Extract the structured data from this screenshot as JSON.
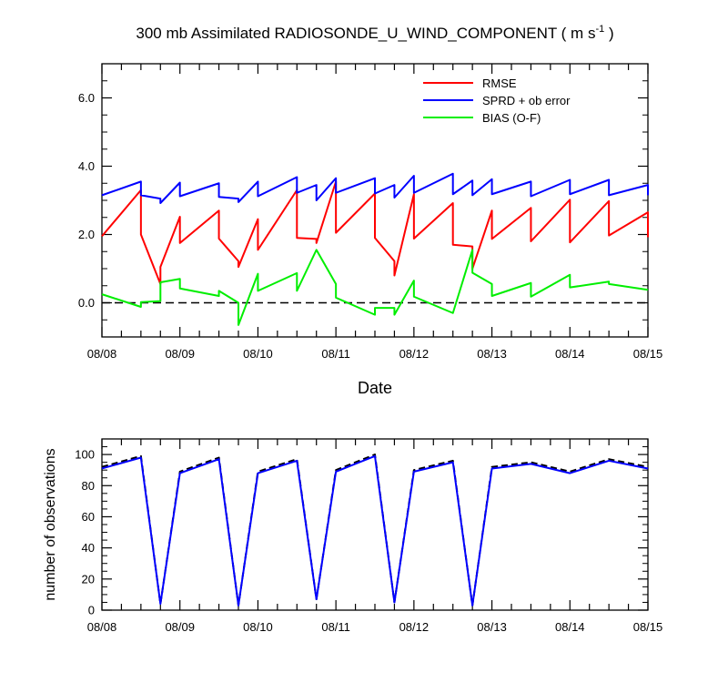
{
  "title": {
    "main": "300 mb Assimilated RADIOSONDE_U_WIND_COMPONENT ( m s",
    "unit_exponent": "-1",
    "close": " )"
  },
  "chart_data": [
    {
      "type": "line",
      "xlabel": "Date",
      "x_tick_labels": [
        "08/08",
        "08/09",
        "08/10",
        "08/11",
        "08/12",
        "08/13",
        "08/14",
        "08/15"
      ],
      "xlim": [
        0,
        7
      ],
      "ylim": [
        -1.0,
        7.0
      ],
      "y_ticks": [
        0.0,
        2.0,
        4.0,
        6.0
      ],
      "y_tick_labels": [
        "0.0",
        "2.0",
        "4.0",
        "6.0"
      ],
      "reference_line": {
        "y": 0.0,
        "style": "dashed"
      },
      "legend_position": "top-right",
      "series": [
        {
          "name": "RMSE",
          "color": "#ff0000",
          "points": [
            [
              0.0,
              1.95
            ],
            [
              0.5,
              3.3
            ],
            [
              0.5,
              2.0
            ],
            [
              0.75,
              0.55
            ],
            [
              0.75,
              1.05
            ],
            [
              1.0,
              2.52
            ],
            [
              1.0,
              1.75
            ],
            [
              1.5,
              2.7
            ],
            [
              1.5,
              1.88
            ],
            [
              1.75,
              1.22
            ],
            [
              1.75,
              1.05
            ],
            [
              2.0,
              2.45
            ],
            [
              2.0,
              1.55
            ],
            [
              2.5,
              3.3
            ],
            [
              2.5,
              1.9
            ],
            [
              2.75,
              1.87
            ],
            [
              2.75,
              1.75
            ],
            [
              3.0,
              3.55
            ],
            [
              3.0,
              2.05
            ],
            [
              3.5,
              3.2
            ],
            [
              3.5,
              1.9
            ],
            [
              3.75,
              1.22
            ],
            [
              3.75,
              0.8
            ],
            [
              4.0,
              3.18
            ],
            [
              4.0,
              1.88
            ],
            [
              4.5,
              2.92
            ],
            [
              4.5,
              1.7
            ],
            [
              4.75,
              1.65
            ],
            [
              4.75,
              1.0
            ],
            [
              5.0,
              2.7
            ],
            [
              5.0,
              1.87
            ],
            [
              5.5,
              2.78
            ],
            [
              5.5,
              1.8
            ],
            [
              6.0,
              3.02
            ],
            [
              6.0,
              1.77
            ],
            [
              6.5,
              2.98
            ],
            [
              6.5,
              1.97
            ],
            [
              7.0,
              2.65
            ],
            [
              7.0,
              1.92
            ]
          ]
        },
        {
          "name": "SPRD + ob error",
          "color": "#0000ff",
          "points": [
            [
              0.0,
              3.15
            ],
            [
              0.5,
              3.55
            ],
            [
              0.5,
              3.15
            ],
            [
              0.75,
              3.05
            ],
            [
              0.75,
              2.92
            ],
            [
              1.0,
              3.52
            ],
            [
              1.0,
              3.12
            ],
            [
              1.5,
              3.5
            ],
            [
              1.5,
              3.1
            ],
            [
              1.75,
              3.05
            ],
            [
              1.75,
              2.95
            ],
            [
              2.0,
              3.55
            ],
            [
              2.0,
              3.12
            ],
            [
              2.5,
              3.68
            ],
            [
              2.5,
              3.22
            ],
            [
              2.75,
              3.45
            ],
            [
              2.75,
              3.0
            ],
            [
              3.0,
              3.65
            ],
            [
              3.0,
              3.22
            ],
            [
              3.5,
              3.65
            ],
            [
              3.5,
              3.2
            ],
            [
              3.75,
              3.45
            ],
            [
              3.75,
              3.08
            ],
            [
              4.0,
              3.72
            ],
            [
              4.0,
              3.22
            ],
            [
              4.5,
              3.78
            ],
            [
              4.5,
              3.18
            ],
            [
              4.75,
              3.58
            ],
            [
              4.75,
              3.15
            ],
            [
              5.0,
              3.62
            ],
            [
              5.0,
              3.18
            ],
            [
              5.5,
              3.55
            ],
            [
              5.5,
              3.12
            ],
            [
              6.0,
              3.6
            ],
            [
              6.0,
              3.18
            ],
            [
              6.5,
              3.6
            ],
            [
              6.5,
              3.15
            ],
            [
              7.0,
              3.45
            ],
            [
              7.0,
              3.15
            ]
          ]
        },
        {
          "name": "BIAS (O-F)",
          "color": "#00ee00",
          "points": [
            [
              0.0,
              0.25
            ],
            [
              0.5,
              -0.12
            ],
            [
              0.5,
              0.02
            ],
            [
              0.75,
              0.05
            ],
            [
              0.75,
              0.6
            ],
            [
              1.0,
              0.7
            ],
            [
              1.0,
              0.42
            ],
            [
              1.5,
              0.2
            ],
            [
              1.5,
              0.35
            ],
            [
              1.75,
              0.0
            ],
            [
              1.75,
              -0.65
            ],
            [
              2.0,
              0.85
            ],
            [
              2.0,
              0.35
            ],
            [
              2.5,
              0.87
            ],
            [
              2.5,
              0.35
            ],
            [
              2.75,
              1.55
            ],
            [
              3.0,
              0.55
            ],
            [
              3.0,
              0.15
            ],
            [
              3.5,
              -0.35
            ],
            [
              3.5,
              -0.15
            ],
            [
              3.75,
              -0.15
            ],
            [
              3.75,
              -0.35
            ],
            [
              4.0,
              0.65
            ],
            [
              4.0,
              0.18
            ],
            [
              4.5,
              -0.3
            ],
            [
              4.75,
              1.55
            ],
            [
              4.75,
              0.88
            ],
            [
              5.0,
              0.55
            ],
            [
              5.0,
              0.2
            ],
            [
              5.5,
              0.58
            ],
            [
              5.5,
              0.18
            ],
            [
              6.0,
              0.82
            ],
            [
              6.0,
              0.45
            ],
            [
              6.5,
              0.62
            ],
            [
              6.5,
              0.55
            ],
            [
              7.0,
              0.38
            ]
          ]
        }
      ]
    },
    {
      "type": "line",
      "ylabel": "number of observations",
      "x_tick_labels": [
        "08/08",
        "08/09",
        "08/10",
        "08/11",
        "08/12",
        "08/13",
        "08/14",
        "08/15"
      ],
      "xlim": [
        0,
        7
      ],
      "ylim": [
        0,
        110
      ],
      "y_ticks": [
        0,
        20,
        40,
        60,
        80,
        100
      ],
      "y_tick_labels": [
        "0",
        "20",
        "40",
        "60",
        "80",
        "100"
      ],
      "series": [
        {
          "color": "#000000",
          "style": "dashed",
          "points": [
            [
              0.0,
              92
            ],
            [
              0.5,
              99
            ],
            [
              0.75,
              4
            ],
            [
              1.0,
              89
            ],
            [
              1.5,
              98
            ],
            [
              1.75,
              3
            ],
            [
              2.0,
              89
            ],
            [
              2.5,
              97
            ],
            [
              2.75,
              7
            ],
            [
              3.0,
              90
            ],
            [
              3.5,
              100
            ],
            [
              3.75,
              5
            ],
            [
              4.0,
              90
            ],
            [
              4.5,
              96
            ],
            [
              4.75,
              3
            ],
            [
              5.0,
              92
            ],
            [
              5.5,
              95
            ],
            [
              6.0,
              89
            ],
            [
              6.5,
              97
            ],
            [
              7.0,
              92
            ]
          ]
        },
        {
          "color": "#0000ff",
          "style": "solid",
          "points": [
            [
              0.0,
              91
            ],
            [
              0.5,
              98
            ],
            [
              0.75,
              4
            ],
            [
              1.0,
              88
            ],
            [
              1.5,
              97
            ],
            [
              1.75,
              3
            ],
            [
              2.0,
              88
            ],
            [
              2.5,
              96
            ],
            [
              2.75,
              7
            ],
            [
              3.0,
              89
            ],
            [
              3.5,
              99
            ],
            [
              3.75,
              5
            ],
            [
              4.0,
              89
            ],
            [
              4.5,
              95
            ],
            [
              4.75,
              3
            ],
            [
              5.0,
              91
            ],
            [
              5.5,
              94
            ],
            [
              6.0,
              88
            ],
            [
              6.5,
              96
            ],
            [
              7.0,
              91
            ]
          ]
        }
      ]
    }
  ]
}
